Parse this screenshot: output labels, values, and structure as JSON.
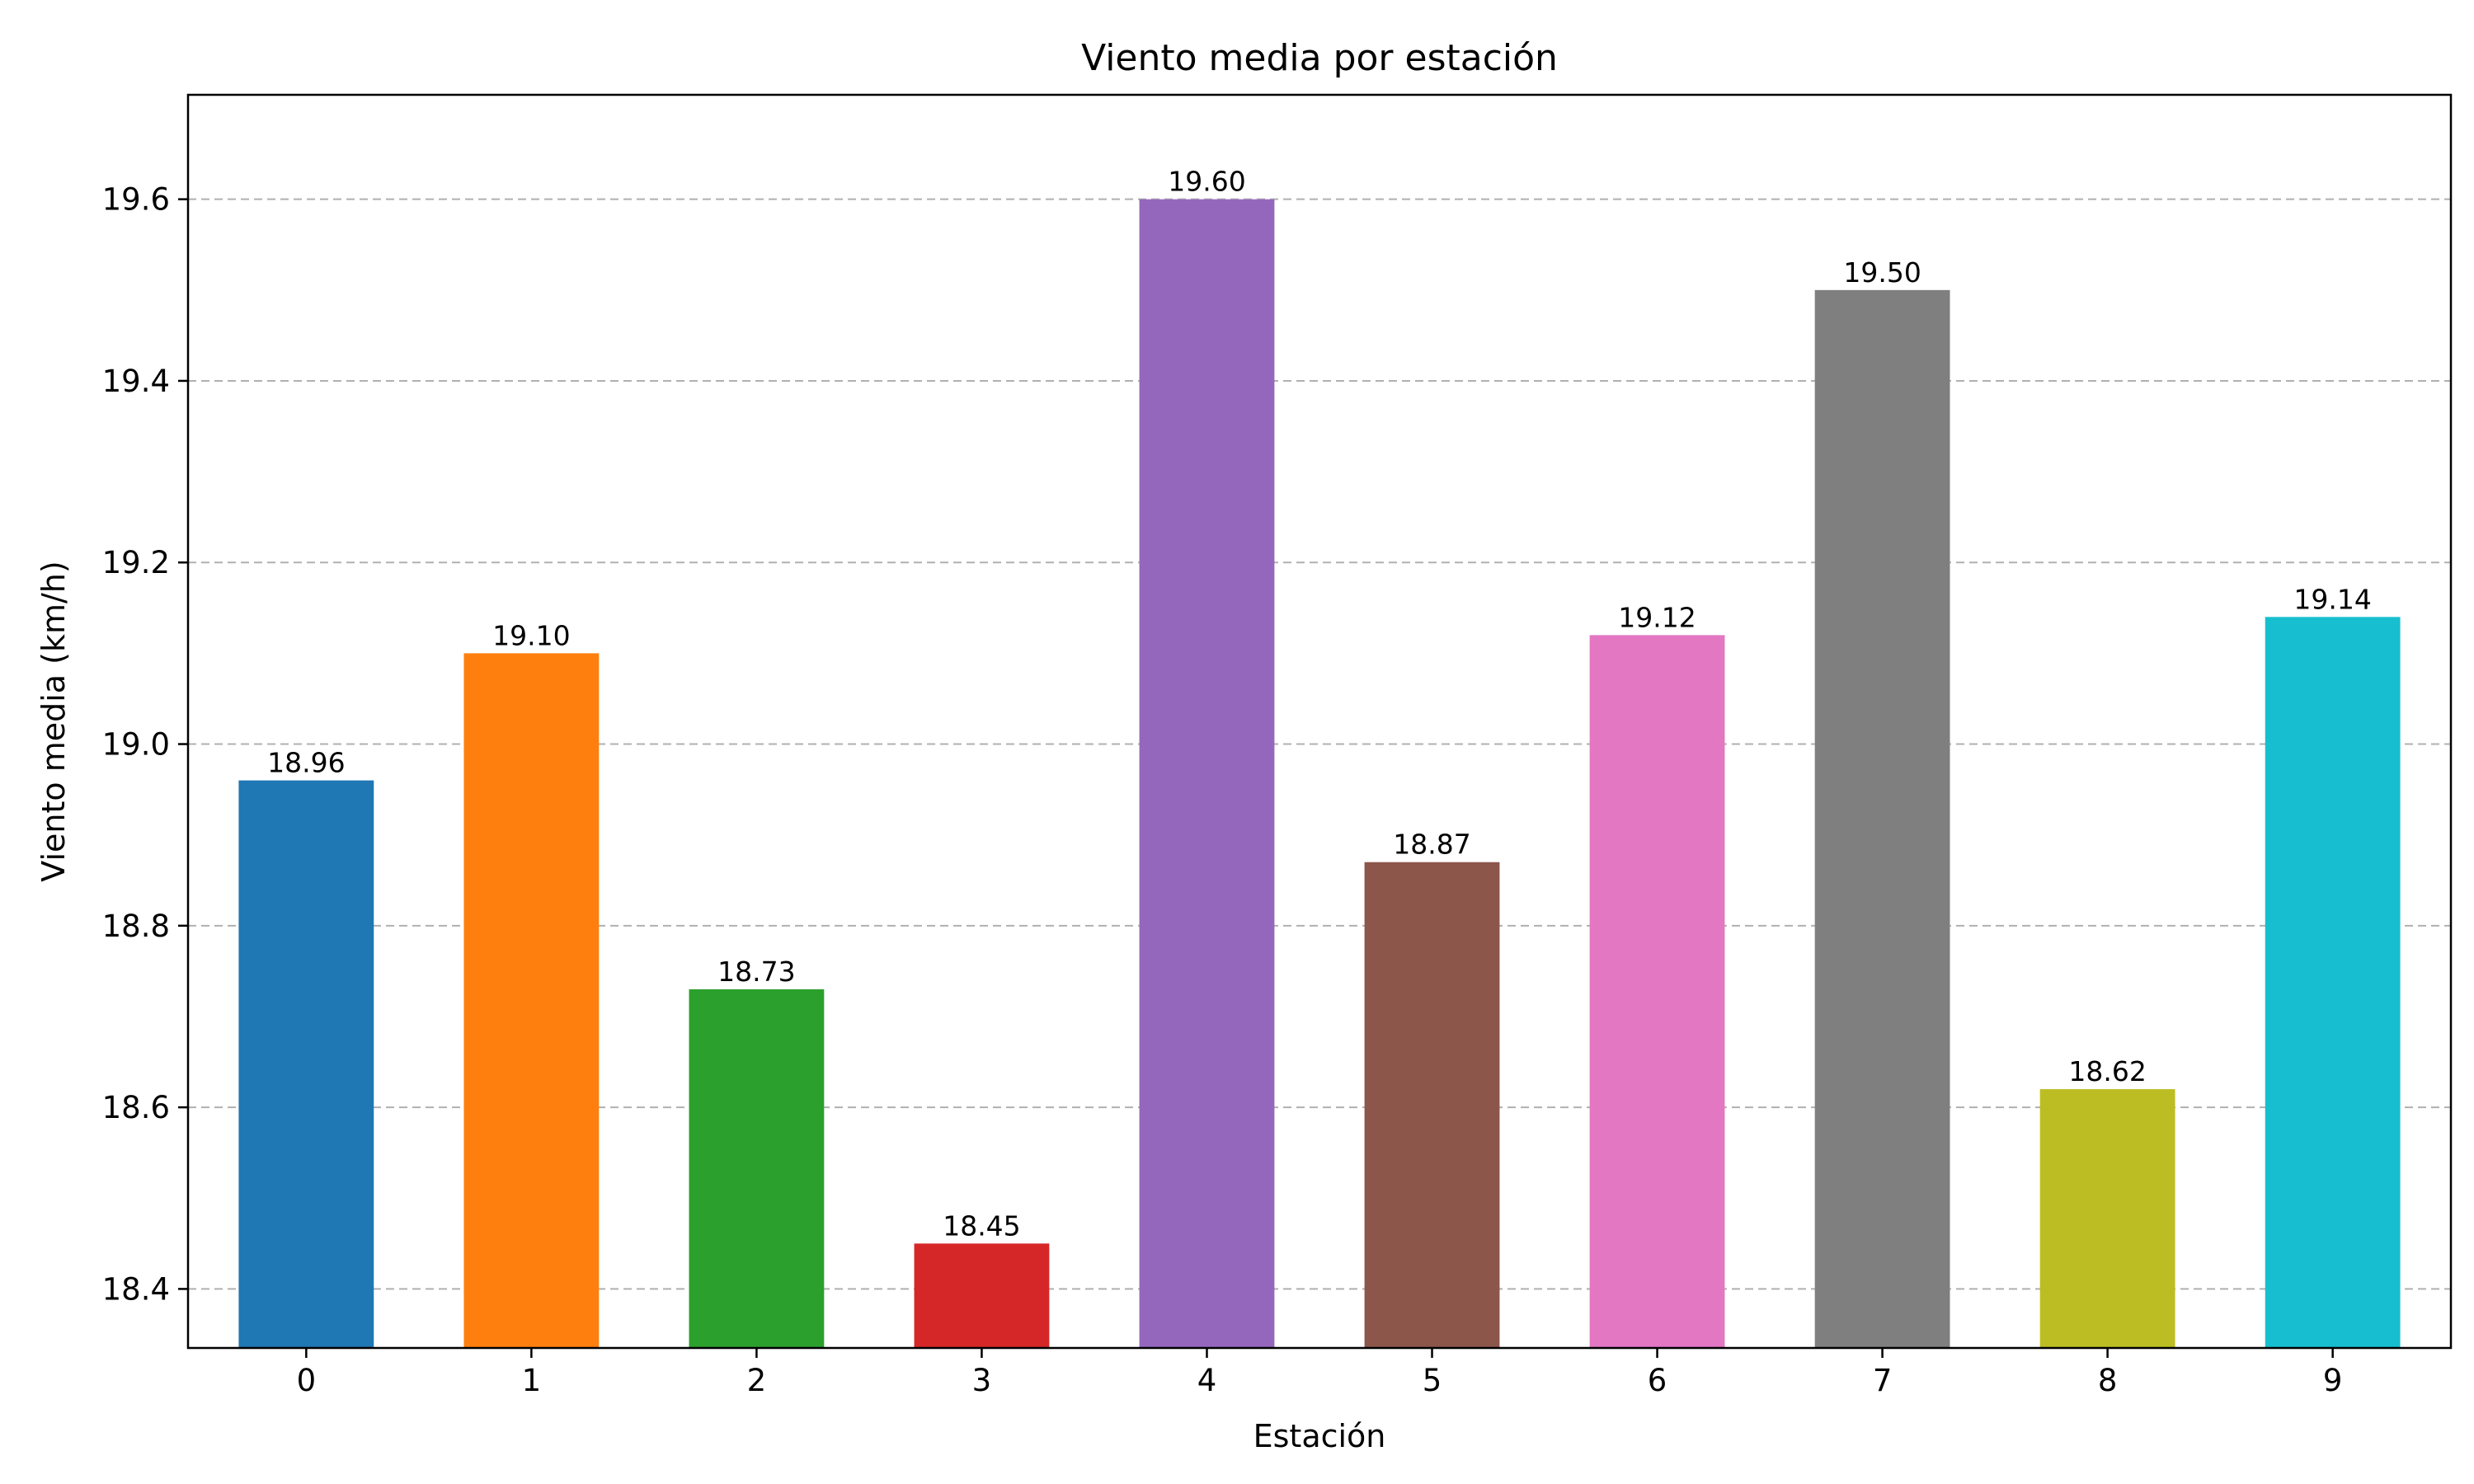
{
  "chart_data": {
    "type": "bar",
    "title": "Viento media por estación",
    "xlabel": "Estación",
    "ylabel": "Viento media (km/h)",
    "categories": [
      "0",
      "1",
      "2",
      "3",
      "4",
      "5",
      "6",
      "7",
      "8",
      "9"
    ],
    "values": [
      18.96,
      19.1,
      18.73,
      18.45,
      19.6,
      18.87,
      19.12,
      19.5,
      18.62,
      19.14
    ],
    "value_labels": [
      "18.96",
      "19.10",
      "18.73",
      "18.45",
      "19.60",
      "18.87",
      "19.12",
      "19.50",
      "18.62",
      "19.14"
    ],
    "ylim": [
      18.335,
      19.715
    ],
    "yticks": [
      18.4,
      18.6,
      18.8,
      19.0,
      19.2,
      19.4,
      19.6
    ],
    "ytick_labels": [
      "18.4",
      "18.6",
      "18.8",
      "19.0",
      "19.2",
      "19.4",
      "19.6"
    ],
    "grid": "y-dashed",
    "colors": [
      "#1f77b4",
      "#ff7f0e",
      "#2ca02c",
      "#d62728",
      "#9467bd",
      "#8c564b",
      "#e377c2",
      "#7f7f7f",
      "#bcbd22",
      "#17becf"
    ]
  }
}
